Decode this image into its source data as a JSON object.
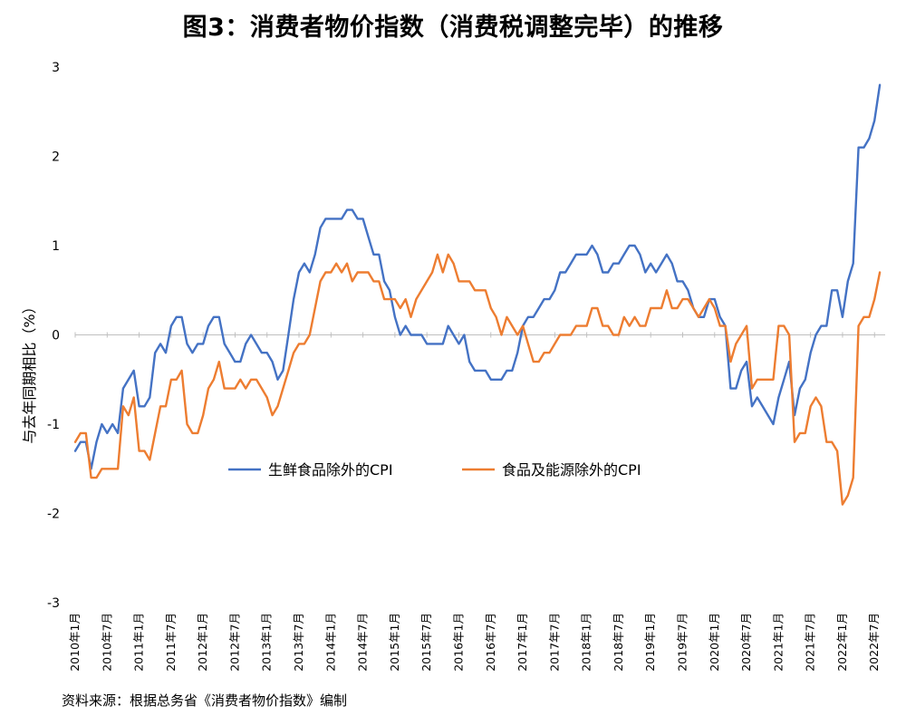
{
  "chart_data": {
    "type": "line",
    "title": "图3：消费者物价指数（消费税调整完毕）的推移",
    "ylabel": "与去年同期相比（%）",
    "xlabel": "",
    "ylim": [
      -3,
      3
    ],
    "yticks": [
      3,
      2,
      1,
      0,
      -1,
      -2,
      -3
    ],
    "legend_position": "center",
    "grid": false,
    "x_start": "2010-01",
    "x_end": "2022-09",
    "x_tick_labels": [
      "2010年1月",
      "2010年7月",
      "2011年1月",
      "2011年7月",
      "2012年1月",
      "2012年7月",
      "2013年1月",
      "2013年7月",
      "2014年1月",
      "2014年7月",
      "2015年1月",
      "2015年7月",
      "2016年1月",
      "2016年7月",
      "2017年1月",
      "2017年7月",
      "2018年1月",
      "2018年7月",
      "2019年1月",
      "2019年7月",
      "2020年1月",
      "2020年7月",
      "2021年1月",
      "2021年7月",
      "2022年1月",
      "2022年7月"
    ],
    "series": [
      {
        "name": "生鲜食品除外的CPI",
        "color": "#4472C4",
        "values": [
          -1.3,
          -1.2,
          -1.2,
          -1.5,
          -1.2,
          -1.0,
          -1.1,
          -1.0,
          -1.1,
          -0.6,
          -0.5,
          -0.4,
          -0.8,
          -0.8,
          -0.7,
          -0.2,
          -0.1,
          -0.2,
          0.1,
          0.2,
          0.2,
          -0.1,
          -0.2,
          -0.1,
          -0.1,
          0.1,
          0.2,
          0.2,
          -0.1,
          -0.2,
          -0.3,
          -0.3,
          -0.1,
          0.0,
          -0.1,
          -0.2,
          -0.2,
          -0.3,
          -0.5,
          -0.4,
          0.0,
          0.4,
          0.7,
          0.8,
          0.7,
          0.9,
          1.2,
          1.3,
          1.3,
          1.3,
          1.3,
          1.4,
          1.4,
          1.3,
          1.3,
          1.1,
          0.9,
          0.9,
          0.6,
          0.5,
          0.2,
          0.0,
          0.1,
          0.0,
          0.0,
          0.0,
          -0.1,
          -0.1,
          -0.1,
          -0.1,
          0.1,
          0.0,
          -0.1,
          0.0,
          -0.3,
          -0.4,
          -0.4,
          -0.4,
          -0.5,
          -0.5,
          -0.5,
          -0.4,
          -0.4,
          -0.2,
          0.1,
          0.2,
          0.2,
          0.3,
          0.4,
          0.4,
          0.5,
          0.7,
          0.7,
          0.8,
          0.9,
          0.9,
          0.9,
          1.0,
          0.9,
          0.7,
          0.7,
          0.8,
          0.8,
          0.9,
          1.0,
          1.0,
          0.9,
          0.7,
          0.8,
          0.7,
          0.8,
          0.9,
          0.8,
          0.6,
          0.6,
          0.5,
          0.3,
          0.2,
          0.2,
          0.4,
          0.4,
          0.2,
          0.1,
          -0.6,
          -0.6,
          -0.4,
          -0.3,
          -0.8,
          -0.7,
          -0.8,
          -0.9,
          -1.0,
          -0.7,
          -0.5,
          -0.3,
          -0.9,
          -0.6,
          -0.5,
          -0.2,
          0.0,
          0.1,
          0.1,
          0.5,
          0.5,
          0.2,
          0.6,
          0.8,
          2.1,
          2.1,
          2.2,
          2.4,
          2.8
        ]
      },
      {
        "name": "食品及能源除外的CPI",
        "color": "#ED7D31",
        "values": [
          -1.2,
          -1.1,
          -1.1,
          -1.6,
          -1.6,
          -1.5,
          -1.5,
          -1.5,
          -1.5,
          -0.8,
          -0.9,
          -0.7,
          -1.3,
          -1.3,
          -1.4,
          -1.1,
          -0.8,
          -0.8,
          -0.5,
          -0.5,
          -0.4,
          -1.0,
          -1.1,
          -1.1,
          -0.9,
          -0.6,
          -0.5,
          -0.3,
          -0.6,
          -0.6,
          -0.6,
          -0.5,
          -0.6,
          -0.5,
          -0.5,
          -0.6,
          -0.7,
          -0.9,
          -0.8,
          -0.6,
          -0.4,
          -0.2,
          -0.1,
          -0.1,
          0.0,
          0.3,
          0.6,
          0.7,
          0.7,
          0.8,
          0.7,
          0.8,
          0.6,
          0.7,
          0.7,
          0.7,
          0.6,
          0.6,
          0.4,
          0.4,
          0.4,
          0.3,
          0.4,
          0.2,
          0.4,
          0.5,
          0.6,
          0.7,
          0.9,
          0.7,
          0.9,
          0.8,
          0.6,
          0.6,
          0.6,
          0.5,
          0.5,
          0.5,
          0.3,
          0.2,
          0.0,
          0.2,
          0.1,
          0.0,
          0.1,
          -0.1,
          -0.3,
          -0.3,
          -0.2,
          -0.2,
          -0.1,
          0.0,
          0.0,
          0.0,
          0.1,
          0.1,
          0.1,
          0.3,
          0.3,
          0.1,
          0.1,
          0.0,
          0.0,
          0.2,
          0.1,
          0.2,
          0.1,
          0.1,
          0.3,
          0.3,
          0.3,
          0.5,
          0.3,
          0.3,
          0.4,
          0.4,
          0.3,
          0.2,
          0.3,
          0.4,
          0.3,
          0.1,
          0.1,
          -0.3,
          -0.1,
          0.0,
          0.1,
          -0.6,
          -0.5,
          -0.5,
          -0.5,
          -0.5,
          0.1,
          0.1,
          0.0,
          -1.2,
          -1.1,
          -1.1,
          -0.8,
          -0.7,
          -0.8,
          -1.2,
          -1.2,
          -1.3,
          -1.9,
          -1.8,
          -1.6,
          0.1,
          0.2,
          0.2,
          0.4,
          0.7
        ]
      }
    ]
  },
  "source_note": "资料来源：根据总务省《消费者物价指数》编制"
}
